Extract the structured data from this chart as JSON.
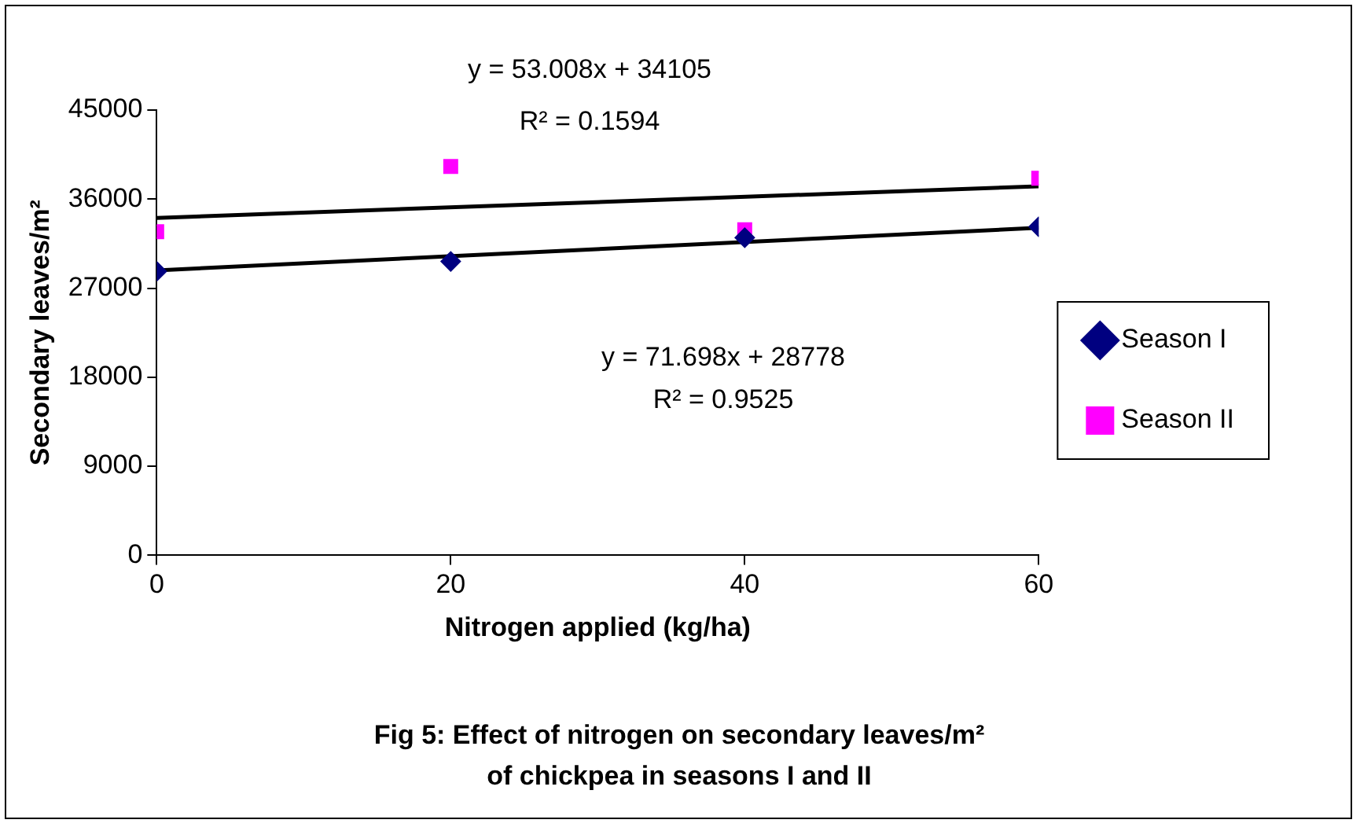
{
  "chart_data": {
    "type": "scatter",
    "title": "Fig 5: Effect of nitrogen on secondary leaves/m² of chickpea in seasons I and II",
    "xlabel": "Nitrogen applied (kg/ha)",
    "ylabel": "Secondary leaves/m²",
    "xlim": [
      0,
      60
    ],
    "xticks": [
      0,
      20,
      40,
      60
    ],
    "ylim": [
      0,
      45000
    ],
    "yticks": [
      0,
      9000,
      18000,
      27000,
      36000,
      45000
    ],
    "grid": false,
    "legend": "right",
    "series": [
      {
        "name": "Season I",
        "color": "#000080",
        "marker": "diamond",
        "x": [
          0,
          20,
          40,
          60
        ],
        "values": [
          28700,
          29700,
          32100,
          33200
        ]
      },
      {
        "name": "Season II",
        "color": "#ff00ff",
        "marker": "square",
        "x": [
          0,
          20,
          40,
          60
        ],
        "values": [
          32700,
          39300,
          32900,
          38100
        ]
      },
      {
        "type": "line",
        "color": "#000000",
        "marker": "none",
        "x": [
          0,
          60
        ],
        "values": [
          28800,
          33100
        ]
      },
      {
        "type": "line",
        "color": "#000000",
        "marker": "none",
        "x": [
          0,
          60
        ],
        "values": [
          34100,
          37300
        ]
      }
    ],
    "annotations": [
      "y = 53.008x + 34105",
      "R² = 0.1594",
      "y = 71.698x + 28778",
      "R² = 0.9525"
    ]
  }
}
